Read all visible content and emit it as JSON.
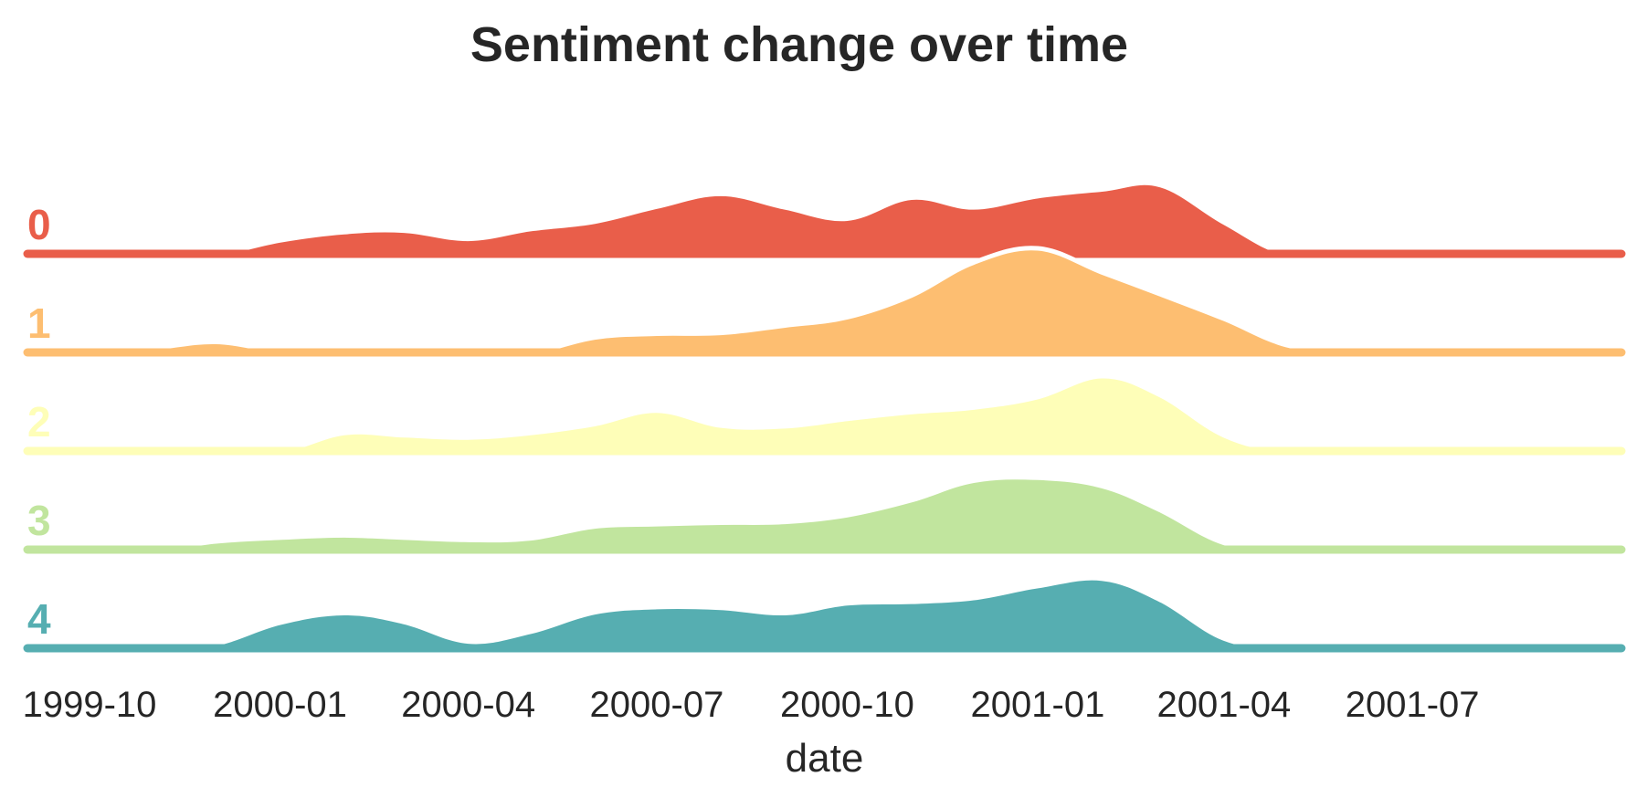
{
  "chart_data": {
    "type": "area",
    "subtype": "ridgeline",
    "title": "Sentiment change over time",
    "xlabel": "date",
    "ylabel": "",
    "x_ticks": [
      "1999-10",
      "2000-01",
      "2000-04",
      "2000-07",
      "2000-10",
      "2001-01",
      "2001-04",
      "2001-07"
    ],
    "xlim": [
      "1999-09-01",
      "2001-10-10"
    ],
    "grid": false,
    "legend": "none",
    "x": [
      "1999-09",
      "1999-10",
      "1999-11",
      "1999-12",
      "2000-01",
      "2000-02",
      "2000-03",
      "2000-04",
      "2000-05",
      "2000-06",
      "2000-07",
      "2000-08",
      "2000-09",
      "2000-10",
      "2000-11",
      "2000-12",
      "2001-01",
      "2001-02",
      "2001-03",
      "2001-04",
      "2001-05",
      "2001-06",
      "2001-07",
      "2001-08",
      "2001-09",
      "2001-10"
    ],
    "series": [
      {
        "name": "0",
        "color": "#e95e4a",
        "values": [
          0,
          0,
          0,
          0,
          0.18,
          0.29,
          0.31,
          0.2,
          0.33,
          0.43,
          0.63,
          0.8,
          0.62,
          0.47,
          0.75,
          0.62,
          0.77,
          0.86,
          0.92,
          0.42,
          0,
          0,
          0,
          0,
          0,
          0
        ]
      },
      {
        "name": "1",
        "color": "#fdbe71",
        "values": [
          0,
          0,
          0.06,
          0.14,
          0.02,
          0,
          0,
          0,
          0,
          0.2,
          0.25,
          0.26,
          0.36,
          0.47,
          0.76,
          1.2,
          1.39,
          1.07,
          0.78,
          0.45,
          0.1,
          0,
          0,
          0,
          0,
          0
        ]
      },
      {
        "name": "2",
        "color": "#fefeb8",
        "values": [
          0,
          0,
          0,
          0,
          0,
          0.24,
          0.21,
          0.18,
          0.24,
          0.36,
          0.54,
          0.34,
          0.33,
          0.43,
          0.52,
          0.58,
          0.72,
          1.0,
          0.75,
          0.21,
          0,
          0,
          0,
          0,
          0,
          0
        ]
      },
      {
        "name": "3",
        "color": "#c1e59e",
        "values": [
          0,
          0,
          0,
          0.11,
          0.16,
          0.19,
          0.16,
          0.13,
          0.15,
          0.31,
          0.34,
          0.36,
          0.37,
          0.46,
          0.66,
          0.92,
          0.96,
          0.85,
          0.53,
          0.09,
          0,
          0,
          0,
          0,
          0,
          0
        ]
      },
      {
        "name": "4",
        "color": "#56aeb1",
        "values": [
          0,
          0,
          0,
          0.06,
          0.34,
          0.47,
          0.35,
          0.09,
          0.22,
          0.48,
          0.55,
          0.54,
          0.47,
          0.6,
          0.62,
          0.67,
          0.83,
          0.93,
          0.65,
          0.13,
          0,
          0,
          0,
          0,
          0,
          0
        ]
      }
    ]
  }
}
